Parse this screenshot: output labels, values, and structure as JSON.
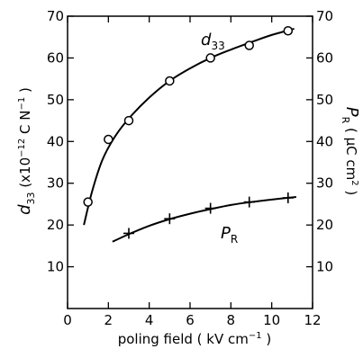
{
  "chart_data": {
    "type": "scatter",
    "x_axis": {
      "label": "poling field ( kV cm",
      "label_superscript": "−1",
      "label_close": ")",
      "range": [
        0,
        12
      ],
      "ticks": [
        0,
        2,
        4,
        6,
        8,
        10,
        12
      ]
    },
    "y_left_axis": {
      "label_symbol": "d",
      "label_subscript": "33",
      "label_units": "(x10",
      "label_units_exp": "−12",
      "label_units_tail": "C N",
      "label_units_exp2": "−1",
      "label_close": ")",
      "range": [
        0,
        70
      ],
      "ticks": [
        10,
        20,
        30,
        40,
        50,
        60,
        70
      ]
    },
    "y_right_axis": {
      "label_symbol": "P",
      "label_subscript": "R",
      "label_units": "( μC cm",
      "label_units_exp": "2",
      "label_close": ")",
      "range": [
        0,
        70
      ],
      "ticks": [
        10,
        20,
        30,
        40,
        50,
        60,
        70
      ]
    },
    "series": [
      {
        "name_symbol": "d",
        "name_subscript": "33",
        "marker": "circle",
        "axis": "left",
        "points": [
          {
            "x": 1.0,
            "y": 25.5
          },
          {
            "x": 2.0,
            "y": 40.5
          },
          {
            "x": 3.0,
            "y": 45.0
          },
          {
            "x": 5.0,
            "y": 54.5
          },
          {
            "x": 7.0,
            "y": 60.0
          },
          {
            "x": 8.9,
            "y": 63.0
          },
          {
            "x": 10.8,
            "y": 66.5
          }
        ],
        "fit": [
          {
            "x": 0.8,
            "y": 20.0
          },
          {
            "x": 1.2,
            "y": 28.0
          },
          {
            "x": 1.7,
            "y": 35.5
          },
          {
            "x": 2.3,
            "y": 41.0
          },
          {
            "x": 3.0,
            "y": 45.5
          },
          {
            "x": 4.0,
            "y": 50.5
          },
          {
            "x": 5.0,
            "y": 54.5
          },
          {
            "x": 6.0,
            "y": 57.5
          },
          {
            "x": 7.0,
            "y": 60.0
          },
          {
            "x": 8.0,
            "y": 62.0
          },
          {
            "x": 9.0,
            "y": 63.8
          },
          {
            "x": 10.0,
            "y": 65.5
          },
          {
            "x": 11.1,
            "y": 67.0
          }
        ]
      },
      {
        "name_symbol": "P",
        "name_subscript": "R",
        "marker": "plus",
        "axis": "right",
        "points": [
          {
            "x": 3.0,
            "y": 18.0
          },
          {
            "x": 5.0,
            "y": 21.5
          },
          {
            "x": 7.0,
            "y": 24.0
          },
          {
            "x": 8.9,
            "y": 25.5
          },
          {
            "x": 10.8,
            "y": 26.5
          }
        ],
        "fit": [
          {
            "x": 2.2,
            "y": 16.0
          },
          {
            "x": 3.0,
            "y": 17.8
          },
          {
            "x": 4.0,
            "y": 19.8
          },
          {
            "x": 5.0,
            "y": 21.4
          },
          {
            "x": 6.0,
            "y": 22.7
          },
          {
            "x": 7.0,
            "y": 23.8
          },
          {
            "x": 8.0,
            "y": 24.8
          },
          {
            "x": 9.0,
            "y": 25.5
          },
          {
            "x": 10.0,
            "y": 26.1
          },
          {
            "x": 11.2,
            "y": 26.7
          }
        ]
      }
    ]
  }
}
